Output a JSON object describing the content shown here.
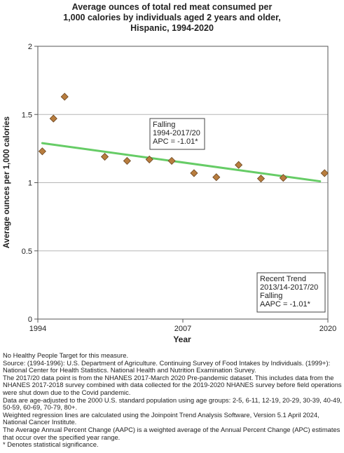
{
  "chart_data": {
    "type": "scatter",
    "title": [
      "Average ounces of total red meat consumed per",
      "1,000 calories by individuals aged 2 years and older,",
      "Hispanic,  1994-2020"
    ],
    "xlabel": "Year",
    "ylabel": "Average ounces per 1,000 calories",
    "xlim": [
      1994,
      2020
    ],
    "ylim": [
      0,
      2
    ],
    "x_ticks": [
      1994,
      2007,
      2020
    ],
    "y_ticks": [
      0,
      0.5,
      1,
      1.5,
      2
    ],
    "y_tick_labels": [
      "0",
      "0.5",
      "1",
      "1.5",
      "2"
    ],
    "grid": "horizontal",
    "points": [
      {
        "x": 1994.4,
        "y": 1.23
      },
      {
        "x": 1995.4,
        "y": 1.47
      },
      {
        "x": 1996.4,
        "y": 1.63
      },
      {
        "x": 2000.0,
        "y": 1.19
      },
      {
        "x": 2002.0,
        "y": 1.16
      },
      {
        "x": 2004.0,
        "y": 1.17
      },
      {
        "x": 2006.0,
        "y": 1.16
      },
      {
        "x": 2008.0,
        "y": 1.07
      },
      {
        "x": 2010.0,
        "y": 1.04
      },
      {
        "x": 2012.0,
        "y": 1.13
      },
      {
        "x": 2014.0,
        "y": 1.03
      },
      {
        "x": 2016.0,
        "y": 1.035
      },
      {
        "x": 2019.7,
        "y": 1.07
      }
    ],
    "trend_line": {
      "x": [
        1994.4,
        2019.3
      ],
      "y": [
        1.29,
        1.01
      ],
      "color": "#66cc66"
    },
    "marker_color": "#b87d3e",
    "annotations": [
      {
        "id": "falling",
        "lines": [
          "Falling",
          "1994-2017/20",
          "APC = -1.01*"
        ]
      },
      {
        "id": "recent",
        "lines": [
          "Recent Trend",
          "2013/14-2017/20",
          "Falling",
          "AAPC = -1.01*"
        ]
      }
    ]
  },
  "notes": [
    "No Healthy People Target for this measure.",
    "Source: (1994-1996): U.S. Department of Agriculture. Continuing Survey of Food Intakes by Individuals. (1999+): National Center for Health Statistics. National Health and Nutrition Examination Survey.",
    "The 2017/20 data point is from the NHANES 2017-March 2020 Pre-pandemic dataset. This includes data from the NHANES 2017-2018 survey combined with data collected for the 2019-2020 NHANES survey before field operations were shut down due to the Covid pandemic.",
    "Data are age-adjusted to the 2000 U.S. standard population using age groups: 2-5, 6-11, 12-19, 20-29, 30-39, 40-49, 50-59, 60-69, 70-79, 80+.",
    "Weighted regression lines are calculated using the Joinpoint Trend Analysis Software, Version 5.1 April 2024, National Cancer Institute.",
    "The Average Annual Percent Change (AAPC) is a weighted average of the Annual Percent Change (APC) estimates that occur over the specified year range.",
    "* Denotes statistical significance."
  ]
}
